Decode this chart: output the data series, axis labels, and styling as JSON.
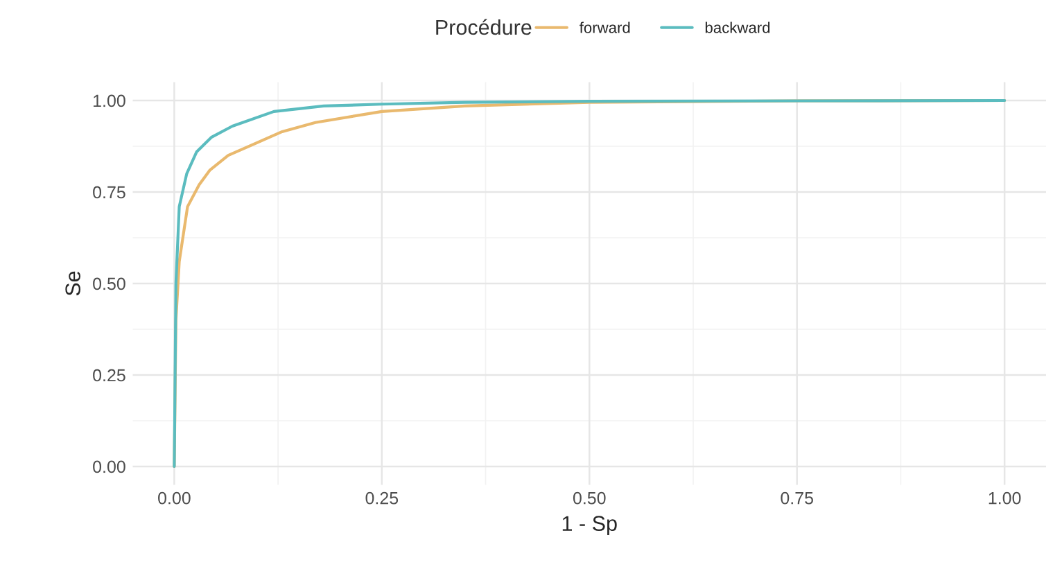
{
  "chart_data": {
    "type": "line",
    "xlabel": "1 - Sp",
    "ylabel": "Se",
    "legend_title": "Procédure",
    "legend": "top",
    "series": [
      {
        "name": "forward",
        "color": "#e9b96e",
        "x": [
          0,
          0.002,
          0.006,
          0.016,
          0.03,
          0.043,
          0.065,
          0.095,
          0.13,
          0.17,
          0.25,
          0.35,
          0.5,
          0.75,
          1
        ],
        "values": [
          0,
          0.4,
          0.56,
          0.71,
          0.77,
          0.81,
          0.85,
          0.88,
          0.915,
          0.94,
          0.97,
          0.985,
          0.995,
          0.999,
          1
        ]
      },
      {
        "name": "backward",
        "color": "#5bbcbf",
        "x": [
          0,
          0.002,
          0.006,
          0.015,
          0.027,
          0.045,
          0.07,
          0.12,
          0.18,
          0.25,
          0.35,
          0.5,
          0.75,
          1
        ],
        "values": [
          0,
          0.5,
          0.71,
          0.8,
          0.86,
          0.9,
          0.93,
          0.97,
          0.985,
          0.99,
          0.995,
          0.998,
          0.999,
          1
        ]
      }
    ],
    "xlim": [
      -0.05,
      1.05
    ],
    "ylim": [
      -0.05,
      1.05
    ],
    "xticks": [
      {
        "value": 0,
        "label": "0.00"
      },
      0.25,
      {
        "value": 0.5,
        "label": "0.50"
      },
      0.75,
      {
        "value": 1,
        "label": "1.00"
      }
    ],
    "yticks": [
      {
        "value": 0,
        "label": "0.00"
      },
      0.25,
      {
        "value": 0.5,
        "label": "0.50"
      },
      0.75,
      {
        "value": 1,
        "label": "1.00"
      }
    ],
    "grid": true
  }
}
